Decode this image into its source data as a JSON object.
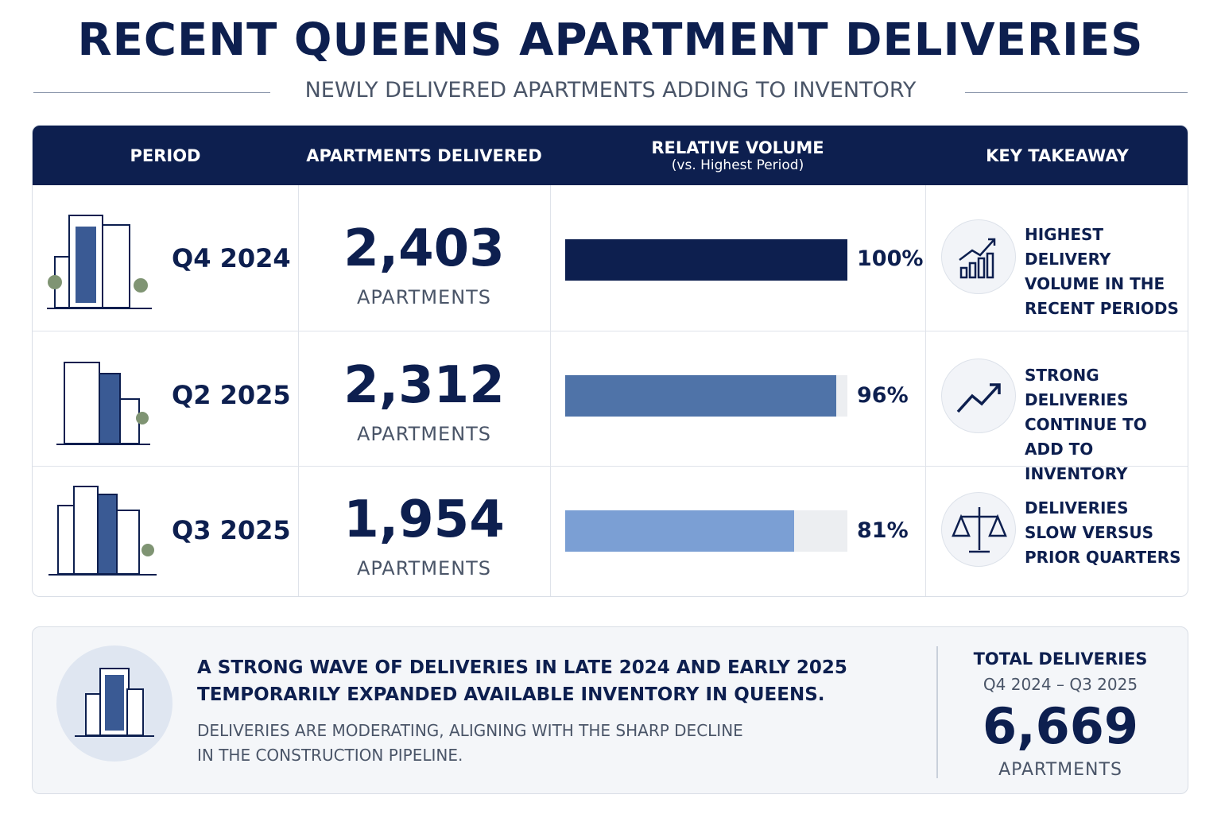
{
  "header": {
    "title": "RECENT QUEENS APARTMENT DELIVERIES",
    "subtitle": "NEWLY DELIVERED APARTMENTS ADDING TO INVENTORY"
  },
  "table": {
    "columns": [
      "PERIOD",
      "APARTMENTS DELIVERED",
      "RELATIVE VOLUME",
      "KEY TAKEAWAY"
    ],
    "relative_volume_note": "(vs. Highest Period)",
    "rows": [
      {
        "period": "Q4 2024",
        "apartments": "2,403",
        "unit": "APARTMENTS",
        "relative_volume": {
          "value": 100,
          "label": "100%"
        },
        "bar_color": "#0d1f4f",
        "takeaway": "HIGHEST DELIVERY VOLUME IN THE RECENT PERIODS"
      },
      {
        "period": "Q2 2025",
        "apartments": "2,312",
        "unit": "APARTMENTS",
        "relative_volume": {
          "value": 96,
          "label": "96%"
        },
        "bar_color": "#4f73a8",
        "takeaway": "STRONG DELIVERIES CONTINUE TO ADD TO INVENTORY"
      },
      {
        "period": "Q3 2025",
        "apartments": "1,954",
        "unit": "APARTMENTS",
        "relative_volume": {
          "value": 81,
          "label": "81%"
        },
        "bar_color": "#7b9fd4",
        "takeaway": "DELIVERIES SLOW VERSUS PRIOR QUARTERS"
      }
    ]
  },
  "summary": {
    "headline": "A STRONG WAVE OF DELIVERIES IN LATE 2024 AND EARLY 2025 TEMPORARILY EXPANDED AVAILABLE INVENTORY IN QUEENS.",
    "body": "DELIVERIES ARE MODERATING, ALIGNING WITH THE SHARP DECLINE IN THE CONSTRUCTION PIPELINE.",
    "total_label": "TOTAL DELIVERIES",
    "total_range": "Q4 2024 – Q3 2025",
    "total_value": "6,669",
    "total_unit": "APARTMENTS"
  }
}
